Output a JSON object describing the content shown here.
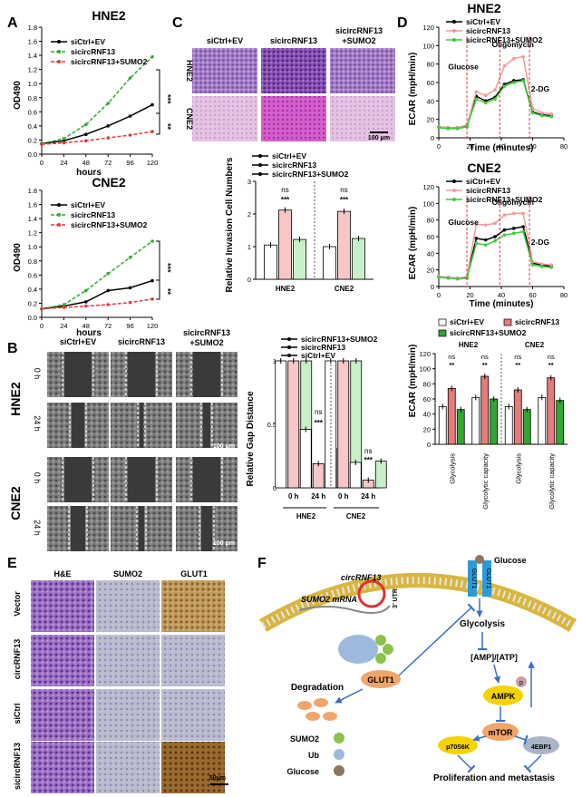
{
  "panels": {
    "A": "A",
    "B": "B",
    "C": "C",
    "D": "D",
    "E": "E",
    "F": "F"
  },
  "A": {
    "hne2": {
      "title": "HNE2",
      "ylabel": "OD490",
      "xlabel": "hours",
      "stars": [
        "***",
        "**"
      ],
      "legend": [
        "siCtrl+EV",
        "sicircRNF13",
        "sicircRNF13+SUMO2"
      ]
    },
    "cne2": {
      "title": "CNE2",
      "ylabel": "OD490",
      "xlabel": "hours",
      "stars": [
        "***",
        "**"
      ],
      "legend": [
        "siCtrl+EV",
        "sicircRNF13",
        "sicircRNF13+SUMO2"
      ]
    }
  },
  "B": {
    "cols": [
      "siCtrl+EV",
      "sicircRNF13",
      "sicircRNF13\n+SUMO2"
    ],
    "col_labels": [
      "siCtrl+EV",
      "sicircRNF13",
      "sicircRNF13",
      "+SUMO2"
    ],
    "row_groups": [
      "HNE2",
      "CNE2"
    ],
    "times": [
      "0 h",
      "24 h",
      "0 h",
      "24 h"
    ],
    "scale": "100 μm",
    "scale2": "100 μm",
    "bar_legend": [
      "siCtrl+EV",
      "sicircRNF13",
      "sicircRNF13+SUMO2"
    ],
    "ylabel": "Relative Gap Distance",
    "groups": [
      "HNE2",
      "CNE2"
    ],
    "xlabels": [
      "0 h",
      "24 h",
      "0 h",
      "24 h"
    ],
    "sig": [
      "ns",
      "***",
      "ns",
      "***"
    ]
  },
  "C": {
    "cols": [
      "siCtrl+EV",
      "sicircRNF13",
      "sicircRNF13",
      "+SUMO2"
    ],
    "rows": [
      "HNE2",
      "CNE2"
    ],
    "scale": "100 μm",
    "legend": [
      "siCtrl+EV",
      "sicircRNF13",
      "sicircRNF13+SUMO2"
    ],
    "ylabel": "Relative Invasion Cell Numbers",
    "groups": [
      "HNE2",
      "CNE2"
    ],
    "sig": [
      "ns",
      "***",
      "ns",
      "***"
    ]
  },
  "D": {
    "hne2": {
      "title": "HNE2",
      "ylabel": "ECAR (mpH/min)",
      "xlabel": "Time (minutes)",
      "legend": [
        "siCtrl+EV",
        "sicircRNF13",
        "sicircRNF13+SUMO2"
      ],
      "ann": [
        "Glucose",
        "Oligomycin",
        "2-DG"
      ]
    },
    "cne2": {
      "title": "CNE2",
      "ylabel": "ECAR (mpH/min)",
      "xlabel": "Time (minutes)",
      "legend": [
        "siCtrl+EV",
        "sicircRNF13",
        "sicircRNF13+SUMO2"
      ],
      "ann": [
        "Glucose",
        "Oligomycin",
        "2-DG"
      ]
    },
    "bar": {
      "ylabel": "ECAR (mpH/min)",
      "legend": [
        "siCtrl+EV",
        "sicircRNF13",
        "sicircRNF13+SUMO2"
      ],
      "groups": [
        "HNE2",
        "CNE2"
      ],
      "cats": [
        "Glycolysis",
        "Glycolytic capacity",
        "Glycolysis",
        "Glycolytic capacity"
      ],
      "sig": [
        "ns",
        "**",
        "ns",
        "**",
        "ns",
        "**",
        "ns",
        "**"
      ]
    }
  },
  "E": {
    "cols": [
      "H&E",
      "SUMO2",
      "GLUT1"
    ],
    "rows": [
      "Vector",
      "circRNF13",
      "siCtrl",
      "sicircRNF13"
    ],
    "scale": "50μm"
  },
  "F": {
    "glucose": "Glucose",
    "glut1_a": "GLUT1",
    "glut1_b": "GLUT1",
    "circ": "circRNF13",
    "utr": "3' UTR",
    "mrna": "SUMO2 mRNA",
    "glut1": "GLUT1",
    "glycolysis": "Glycolysis",
    "ratio": "[AMP]/[ATP]",
    "p": "p",
    "ampk": "AMPK",
    "mtor": "mTOR",
    "p70": "p70S6K",
    "ebp": "4EBP1",
    "degradation": "Degradation",
    "leg_sumo2": "SUMO2",
    "leg_ub": "Ub",
    "leg_glucose": "Glucose",
    "outcome": "Proliferation and metastasis"
  },
  "chart_data": [
    {
      "type": "line",
      "title": "HNE2",
      "xlabel": "hours",
      "ylabel": "OD490",
      "x": [
        0,
        24,
        48,
        72,
        96,
        120
      ],
      "xlim": [
        0,
        120
      ],
      "ylim": [
        0,
        1.8
      ],
      "series": [
        {
          "name": "siCtrl+EV",
          "values": [
            0.15,
            0.19,
            0.28,
            0.4,
            0.54,
            0.7
          ]
        },
        {
          "name": "sicircRNF13",
          "values": [
            0.15,
            0.22,
            0.42,
            0.72,
            1.08,
            1.38
          ]
        },
        {
          "name": "sicircRNF13+SUMO2",
          "values": [
            0.14,
            0.16,
            0.19,
            0.23,
            0.27,
            0.32
          ]
        }
      ]
    },
    {
      "type": "line",
      "title": "CNE2",
      "xlabel": "hours",
      "ylabel": "OD490",
      "x": [
        0,
        24,
        48,
        72,
        96,
        120
      ],
      "xlim": [
        0,
        120
      ],
      "ylim": [
        0,
        1.8
      ],
      "series": [
        {
          "name": "siCtrl+EV",
          "values": [
            0.12,
            0.16,
            0.22,
            0.38,
            0.42,
            0.52
          ]
        },
        {
          "name": "sicircRNF13",
          "values": [
            0.12,
            0.18,
            0.38,
            0.62,
            0.85,
            1.08
          ]
        },
        {
          "name": "sicircRNF13+SUMO2",
          "values": [
            0.12,
            0.14,
            0.16,
            0.18,
            0.21,
            0.26
          ]
        }
      ]
    },
    {
      "type": "bar",
      "ylabel": "Relative Gap Distance",
      "categories": [
        "HNE2 0 h",
        "HNE2 24 h",
        "CNE2 0 h",
        "CNE2 24 h"
      ],
      "ylim": [
        0,
        1.0
      ],
      "series": [
        {
          "name": "siCtrl+EV",
          "values": [
            1.0,
            0.46,
            1.0,
            0.2
          ]
        },
        {
          "name": "sicircRNF13",
          "values": [
            1.0,
            0.19,
            1.0,
            0.06
          ]
        },
        {
          "name": "sicircRNF13+SUMO2",
          "values": [
            1.0,
            0.31,
            1.0,
            0.21
          ]
        }
      ]
    },
    {
      "type": "bar",
      "ylabel": "Relative Invasion Cell Numbers",
      "categories": [
        "HNE2",
        "CNE2"
      ],
      "ylim": [
        0,
        3
      ],
      "series": [
        {
          "name": "siCtrl+EV",
          "values": [
            1.05,
            1.0
          ]
        },
        {
          "name": "sicircRNF13",
          "values": [
            2.12,
            2.08
          ]
        },
        {
          "name": "sicircRNF13+SUMO2",
          "values": [
            1.22,
            1.25
          ]
        }
      ]
    },
    {
      "type": "line",
      "title": "HNE2",
      "xlabel": "Time (minutes)",
      "ylabel": "ECAR (mpH/min)",
      "x": [
        0,
        6,
        12,
        18,
        24,
        30,
        36,
        42,
        48,
        54,
        60,
        66,
        72
      ],
      "xlim": [
        0,
        80
      ],
      "ylim": [
        0,
        120
      ],
      "series": [
        {
          "name": "siCtrl+EV",
          "values": [
            12,
            11,
            11,
            13,
            45,
            40,
            44,
            58,
            62,
            63,
            28,
            25,
            24
          ]
        },
        {
          "name": "sicircRNF13",
          "values": [
            12,
            11,
            11,
            14,
            50,
            46,
            52,
            78,
            86,
            88,
            32,
            27,
            26
          ]
        },
        {
          "name": "sicircRNF13+SUMO2",
          "values": [
            11,
            10,
            10,
            12,
            42,
            38,
            42,
            56,
            60,
            62,
            27,
            24,
            23
          ]
        }
      ]
    },
    {
      "type": "line",
      "title": "CNE2",
      "xlabel": "Time (minutes)",
      "ylabel": "ECAR (mpH/min)",
      "x": [
        0,
        6,
        12,
        18,
        24,
        30,
        36,
        42,
        48,
        54,
        60,
        66,
        72
      ],
      "xlim": [
        0,
        80
      ],
      "ylim": [
        0,
        120
      ],
      "series": [
        {
          "name": "siCtrl+EV",
          "values": [
            12,
            11,
            10,
            11,
            58,
            56,
            60,
            68,
            70,
            72,
            28,
            26,
            24
          ]
        },
        {
          "name": "sicircRNF13",
          "values": [
            12,
            11,
            10,
            12,
            75,
            74,
            76,
            86,
            88,
            88,
            30,
            27,
            26
          ]
        },
        {
          "name": "sicircRNF13+SUMO2",
          "values": [
            11,
            10,
            9,
            10,
            52,
            50,
            55,
            62,
            64,
            66,
            26,
            24,
            23
          ]
        }
      ]
    },
    {
      "type": "bar",
      "ylabel": "ECAR (mpH/min)",
      "categories": [
        "HNE2 Glycolysis",
        "HNE2 Glycolytic capacity",
        "CNE2 Glycolysis",
        "CNE2 Glycolytic capacity"
      ],
      "ylim": [
        0,
        120
      ],
      "series": [
        {
          "name": "siCtrl+EV",
          "values": [
            50,
            62,
            50,
            62
          ]
        },
        {
          "name": "sicircRNF13",
          "values": [
            74,
            90,
            72,
            88
          ]
        },
        {
          "name": "sicircRNF13+SUMO2",
          "values": [
            46,
            60,
            46,
            58
          ]
        }
      ]
    }
  ]
}
